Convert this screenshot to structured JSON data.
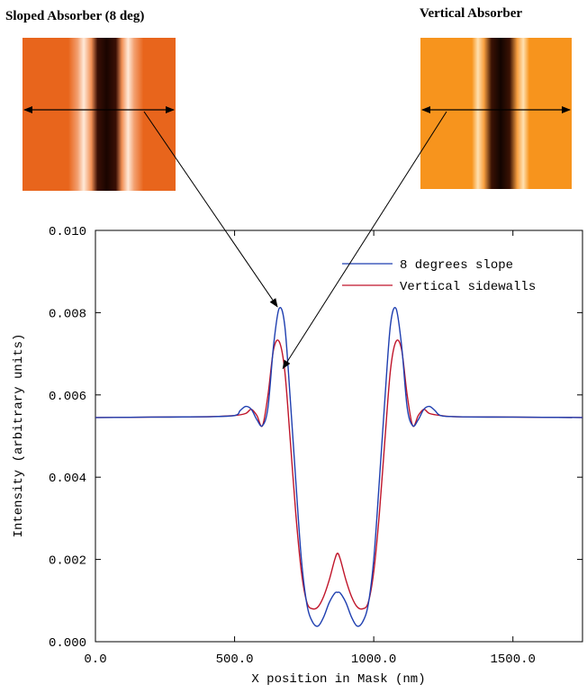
{
  "images": [
    {
      "title": "Sloped Absorber (8 deg)",
      "style": "sloped",
      "base_color": "#e8651c"
    },
    {
      "title": "Vertical Absorber",
      "style": "vertical",
      "base_color": "#f7941d"
    }
  ],
  "chart_data": {
    "type": "line",
    "xlabel": "X position in Mask (nm)",
    "ylabel": "Intensity (arbitrary units)",
    "xlim": [
      0,
      1750
    ],
    "ylim": [
      0,
      0.01
    ],
    "x_ticks": [
      0,
      500,
      1000,
      1500
    ],
    "x_tick_labels": [
      "0.0",
      "500.0",
      "1000.0",
      "1500.0"
    ],
    "y_ticks": [
      0,
      0.002,
      0.004,
      0.006,
      0.008,
      0.01
    ],
    "y_tick_labels": [
      "0.000",
      "0.002",
      "0.004",
      "0.006",
      "0.008",
      "0.010"
    ],
    "legend_position": "top-right",
    "series": [
      {
        "name": "8 degrees slope",
        "color": "#1f3fb0",
        "x": [
          0,
          200,
          400,
          500,
          520,
          540,
          560,
          580,
          600,
          620,
          640,
          660,
          680,
          700,
          720,
          740,
          760,
          780,
          800,
          820,
          840,
          860,
          870,
          880,
          900,
          920,
          940,
          960,
          980,
          1000,
          1020,
          1040,
          1060,
          1080,
          1100,
          1120,
          1140,
          1160,
          1180,
          1200,
          1220,
          1240,
          1300,
          1500,
          1750
        ],
        "y": [
          0.00545,
          0.00546,
          0.00547,
          0.0055,
          0.00562,
          0.00572,
          0.00565,
          0.0054,
          0.00525,
          0.0057,
          0.0072,
          0.0081,
          0.0077,
          0.0059,
          0.0039,
          0.002,
          0.0009,
          0.00048,
          0.00038,
          0.0006,
          0.00095,
          0.00118,
          0.0012,
          0.00118,
          0.00095,
          0.0006,
          0.00038,
          0.00048,
          0.0009,
          0.002,
          0.0039,
          0.0059,
          0.0077,
          0.0081,
          0.0072,
          0.0057,
          0.00525,
          0.0054,
          0.00565,
          0.00572,
          0.00562,
          0.0055,
          0.00547,
          0.00546,
          0.00545
        ]
      },
      {
        "name": "Vertical sidewalls",
        "color": "#c0152a",
        "x": [
          0,
          200,
          400,
          500,
          540,
          560,
          580,
          600,
          620,
          640,
          660,
          680,
          700,
          720,
          740,
          760,
          780,
          800,
          820,
          840,
          860,
          870,
          880,
          900,
          920,
          940,
          960,
          980,
          1000,
          1020,
          1040,
          1060,
          1080,
          1100,
          1120,
          1140,
          1160,
          1180,
          1200,
          1240,
          1300,
          1500,
          1750
        ],
        "y": [
          0.00545,
          0.00546,
          0.00547,
          0.0055,
          0.00555,
          0.00565,
          0.0055,
          0.00525,
          0.006,
          0.0071,
          0.0073,
          0.0066,
          0.0049,
          0.0031,
          0.0017,
          0.00095,
          0.0008,
          0.00085,
          0.0011,
          0.0015,
          0.002,
          0.00215,
          0.002,
          0.0015,
          0.0011,
          0.00085,
          0.0008,
          0.00095,
          0.0017,
          0.0031,
          0.0049,
          0.0066,
          0.0073,
          0.0071,
          0.006,
          0.00525,
          0.0055,
          0.00565,
          0.00555,
          0.0055,
          0.00547,
          0.00546,
          0.00545
        ]
      }
    ],
    "annotations": [
      {
        "from_image": 0,
        "to_series": 0,
        "to": [
          660,
          0.0081
        ]
      },
      {
        "from_image": 1,
        "to_series": 1,
        "to": [
          680,
          0.0066
        ]
      }
    ]
  }
}
